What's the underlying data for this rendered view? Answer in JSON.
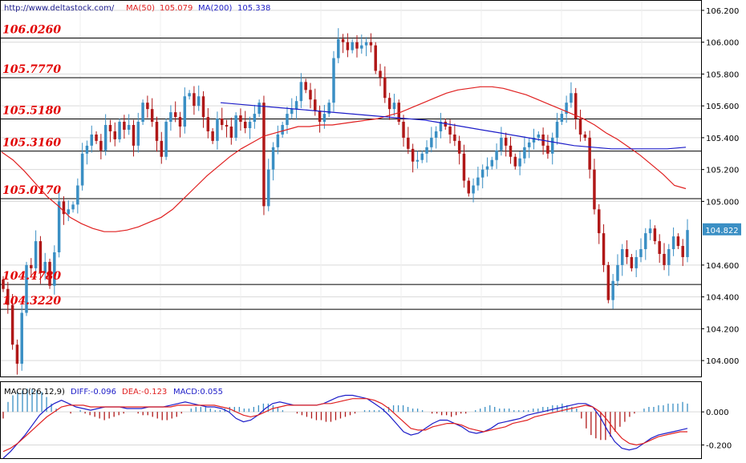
{
  "header": {
    "source": "http://www.deltastock.com/",
    "ma50_label": "MA(50)",
    "ma50_value": "105.079",
    "ma200_label": "MA(200)",
    "ma200_value": "105.338"
  },
  "macd_header": {
    "label": "MACD(26,12,9)",
    "diff": "DIFF:-0.096",
    "dea": "DEA:-0.123",
    "macd": "MACD:0.055"
  },
  "colors": {
    "up": "#3a8fc4",
    "down": "#b01818",
    "ma50": "#e02020",
    "ma200": "#1c1cc8",
    "level_text": "#e10000",
    "grid": "#d9d9d9",
    "price_box": "#3a8fc4"
  },
  "chart_data": [
    {
      "type": "candlestick",
      "ylim": [
        103.9,
        106.26
      ],
      "yticks": [
        "106.200",
        "106.000",
        "105.800",
        "105.600",
        "105.400",
        "105.200",
        "105.000",
        "104.600",
        "104.400",
        "104.200",
        "104.000"
      ],
      "ytick_values": [
        106.2,
        106.0,
        105.8,
        105.6,
        105.4,
        105.2,
        105.0,
        104.6,
        104.4,
        104.2,
        104.0
      ],
      "current_price": "104.822",
      "current_price_value": 104.822,
      "levels": [
        {
          "label": "106.0260",
          "value": 106.026
        },
        {
          "label": "105.7770",
          "value": 105.777
        },
        {
          "label": "105.5180",
          "value": 105.518
        },
        {
          "label": "105.3160",
          "value": 105.316
        },
        {
          "label": "105.0170",
          "value": 105.017
        },
        {
          "label": "104.4780",
          "value": 104.478
        },
        {
          "label": "104.3220",
          "value": 104.322
        }
      ],
      "close": [
        104.45,
        104.35,
        104.1,
        103.98,
        104.3,
        104.6,
        104.58,
        104.75,
        104.55,
        104.62,
        104.47,
        104.68,
        105.0,
        104.92,
        104.95,
        104.98,
        105.1,
        105.3,
        105.35,
        105.42,
        105.38,
        105.32,
        105.48,
        105.44,
        105.39,
        105.5,
        105.45,
        105.48,
        105.35,
        105.5,
        105.62,
        105.58,
        105.5,
        105.38,
        105.28,
        105.5,
        105.56,
        105.53,
        105.47,
        105.66,
        105.68,
        105.6,
        105.66,
        105.53,
        105.44,
        105.38,
        105.52,
        105.48,
        105.47,
        105.4,
        105.54,
        105.5,
        105.46,
        105.5,
        105.55,
        105.62,
        104.97,
        105.2,
        105.34,
        105.42,
        105.48,
        105.55,
        105.58,
        105.63,
        105.75,
        105.7,
        105.64,
        105.57,
        105.5,
        105.55,
        105.62,
        105.9,
        106.02,
        106.0,
        105.95,
        106.0,
        105.96,
        105.98,
        106.0,
        105.98,
        105.82,
        105.78,
        105.65,
        105.58,
        105.62,
        105.5,
        105.4,
        105.33,
        105.25,
        105.26,
        105.3,
        105.34,
        105.4,
        105.44,
        105.5,
        105.47,
        105.42,
        105.38,
        105.3,
        105.13,
        105.05,
        105.1,
        105.15,
        105.2,
        105.22,
        105.26,
        105.32,
        105.4,
        105.35,
        105.28,
        105.22,
        105.27,
        105.34,
        105.37,
        105.4,
        105.42,
        105.35,
        105.3,
        105.4,
        105.5,
        105.55,
        105.62,
        105.68,
        105.52,
        105.42,
        105.4,
        105.2,
        104.95,
        104.8,
        104.6,
        104.38,
        104.5,
        104.6,
        104.7,
        104.65,
        104.58,
        104.65,
        104.7,
        104.8,
        104.83,
        104.75,
        104.67,
        104.6,
        104.7,
        104.78,
        104.72,
        104.65,
        104.82
      ],
      "ma50": [
        105.31,
        105.26,
        105.19,
        105.11,
        105.03,
        104.97,
        104.9,
        104.86,
        104.83,
        104.81,
        104.81,
        104.82,
        104.84,
        104.87,
        104.9,
        104.95,
        105.02,
        105.09,
        105.16,
        105.22,
        105.28,
        105.33,
        105.37,
        105.41,
        105.43,
        105.45,
        105.47,
        105.47,
        105.48,
        105.48,
        105.49,
        105.5,
        105.51,
        105.52,
        105.54,
        105.56,
        105.59,
        105.62,
        105.65,
        105.68,
        105.7,
        105.71,
        105.72,
        105.72,
        105.71,
        105.69,
        105.67,
        105.64,
        105.61,
        105.58,
        105.55,
        105.52,
        105.48,
        105.43,
        105.39,
        105.34,
        105.29,
        105.23,
        105.17,
        105.1,
        105.08
      ],
      "ma200": [
        105.62,
        105.61,
        105.6,
        105.59,
        105.58,
        105.57,
        105.56,
        105.55,
        105.54,
        105.53,
        105.52,
        105.51,
        105.49,
        105.47,
        105.45,
        105.43,
        105.41,
        105.39,
        105.37,
        105.35,
        105.34,
        105.33,
        105.33,
        105.33,
        105.33,
        105.34
      ]
    },
    {
      "type": "macd",
      "ylim": [
        -0.28,
        0.18
      ],
      "yticks": [
        "0.000",
        "-0.200"
      ],
      "ytick_values": [
        0.0,
        -0.2
      ],
      "diff": [
        -0.28,
        -0.24,
        -0.19,
        -0.14,
        -0.08,
        -0.02,
        0.02,
        0.05,
        0.07,
        0.05,
        0.03,
        0.02,
        0.01,
        0.02,
        0.03,
        0.03,
        0.03,
        0.02,
        0.02,
        0.02,
        0.03,
        0.03,
        0.03,
        0.04,
        0.05,
        0.06,
        0.05,
        0.04,
        0.03,
        0.03,
        0.02,
        0.0,
        -0.04,
        -0.06,
        -0.05,
        -0.02,
        0.02,
        0.05,
        0.06,
        0.05,
        0.04,
        0.04,
        0.04,
        0.04,
        0.05,
        0.07,
        0.09,
        0.1,
        0.1,
        0.09,
        0.08,
        0.05,
        0.02,
        -0.02,
        -0.07,
        -0.12,
        -0.14,
        -0.13,
        -0.1,
        -0.07,
        -0.05,
        -0.05,
        -0.07,
        -0.09,
        -0.12,
        -0.13,
        -0.12,
        -0.1,
        -0.07,
        -0.06,
        -0.05,
        -0.04,
        -0.02,
        -0.01,
        0.0,
        0.01,
        0.02,
        0.03,
        0.04,
        0.05,
        0.05,
        0.03,
        -0.03,
        -0.11,
        -0.18,
        -0.22,
        -0.23,
        -0.22,
        -0.19,
        -0.16,
        -0.14,
        -0.13,
        -0.12,
        -0.11,
        -0.1
      ],
      "dea": [
        -0.24,
        -0.22,
        -0.19,
        -0.15,
        -0.11,
        -0.07,
        -0.03,
        0.0,
        0.03,
        0.04,
        0.04,
        0.04,
        0.03,
        0.03,
        0.03,
        0.03,
        0.03,
        0.03,
        0.03,
        0.03,
        0.03,
        0.03,
        0.03,
        0.03,
        0.04,
        0.04,
        0.04,
        0.04,
        0.04,
        0.04,
        0.03,
        0.02,
        0.0,
        -0.02,
        -0.03,
        -0.02,
        0.0,
        0.02,
        0.03,
        0.04,
        0.04,
        0.04,
        0.04,
        0.04,
        0.05,
        0.05,
        0.06,
        0.07,
        0.08,
        0.08,
        0.08,
        0.07,
        0.05,
        0.02,
        -0.02,
        -0.06,
        -0.1,
        -0.11,
        -0.11,
        -0.09,
        -0.08,
        -0.07,
        -0.07,
        -0.08,
        -0.1,
        -0.11,
        -0.12,
        -0.11,
        -0.1,
        -0.09,
        -0.07,
        -0.06,
        -0.05,
        -0.03,
        -0.02,
        -0.01,
        0.0,
        0.01,
        0.02,
        0.03,
        0.04,
        0.03,
        0.0,
        -0.05,
        -0.11,
        -0.16,
        -0.19,
        -0.2,
        -0.19,
        -0.17,
        -0.15,
        -0.14,
        -0.13,
        -0.12,
        -0.12
      ],
      "hist": [
        -0.04,
        0.06,
        0.1,
        0.12,
        0.13,
        0.14,
        0.14,
        0.13,
        0.12,
        0.09,
        0.05,
        0.02,
        0.0,
        0.0,
        -0.01,
        0.0,
        0.01,
        -0.01,
        -0.02,
        -0.03,
        -0.04,
        -0.05,
        -0.04,
        -0.03,
        -0.02,
        -0.01,
        0.0,
        0.0,
        -0.01,
        -0.02,
        -0.02,
        -0.03,
        -0.04,
        -0.05,
        -0.05,
        -0.04,
        -0.03,
        -0.01,
        0.0,
        0.02,
        0.03,
        0.03,
        0.03,
        0.02,
        0.01,
        0.01,
        0.02,
        0.03,
        0.03,
        0.03,
        0.02,
        0.02,
        0.03,
        0.04,
        0.05,
        0.05,
        0.04,
        0.03,
        0.01,
        0.0,
        0.0,
        -0.01,
        -0.02,
        -0.03,
        -0.04,
        -0.05,
        -0.05,
        -0.06,
        -0.06,
        -0.05,
        -0.04,
        -0.03,
        -0.02,
        -0.01,
        0.0,
        0.01,
        0.01,
        0.01,
        0.01,
        0.02,
        0.03,
        0.04,
        0.04,
        0.04,
        0.03,
        0.02,
        0.02,
        0.01,
        0.0,
        -0.01,
        -0.01,
        -0.02,
        -0.02,
        -0.03,
        -0.02,
        -0.01,
        -0.01,
        0.0,
        0.01,
        0.02,
        0.03,
        0.04,
        0.03,
        0.02,
        0.02,
        0.02,
        0.01,
        0.01,
        0.01,
        0.01,
        0.02,
        0.02,
        0.03,
        0.03,
        0.04,
        0.04,
        0.05,
        0.04,
        0.03,
        0.02,
        -0.04,
        -0.1,
        -0.14,
        -0.16,
        -0.17,
        -0.17,
        -0.15,
        -0.12,
        -0.09,
        -0.06,
        -0.03,
        -0.01,
        0.0,
        0.02,
        0.03,
        0.03,
        0.04,
        0.04,
        0.05,
        0.05,
        0.05,
        0.06,
        0.05
      ]
    }
  ]
}
